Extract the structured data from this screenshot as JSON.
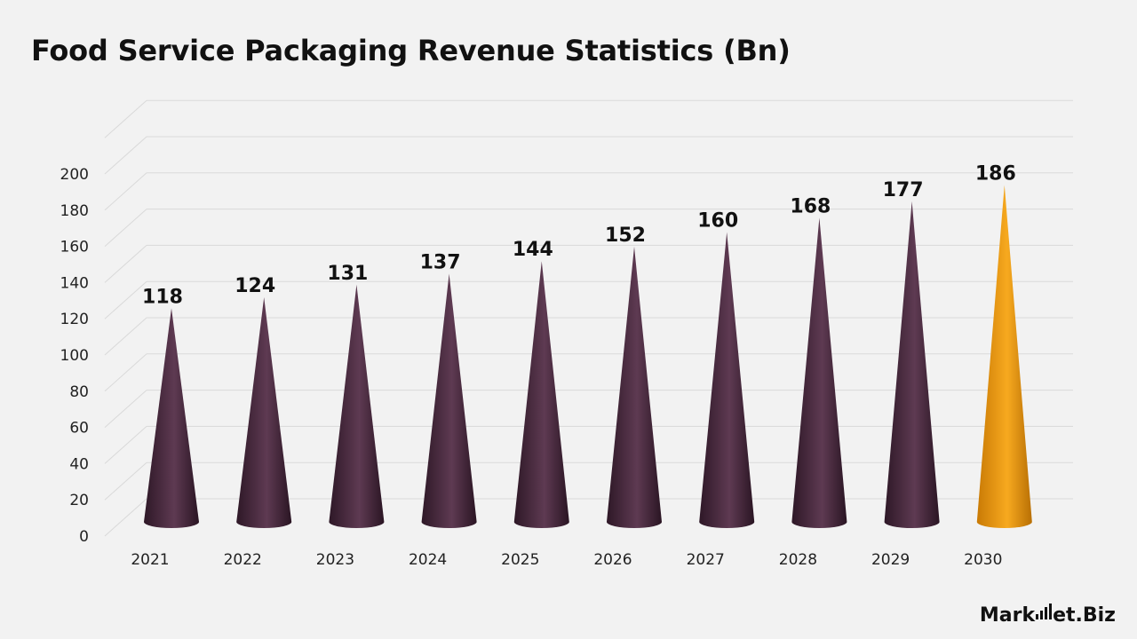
{
  "header": {
    "title": "Food Service Packaging Revenue Statistics (Bn)"
  },
  "brand": {
    "text_left": "Mark",
    "text_right": "et.Biz"
  },
  "colors": {
    "bar": "#4a2c40",
    "highlight": "#f29d12",
    "background": "#f2f2f2",
    "grid": "#d9d9d9"
  },
  "chart_data": {
    "type": "bar",
    "bar_shape": "cone",
    "title": "Food Service Packaging Revenue Statistics (Bn)",
    "categories": [
      "2021",
      "2022",
      "2023",
      "2024",
      "2025",
      "2026",
      "2027",
      "2028",
      "2029",
      "2030"
    ],
    "values": [
      118,
      124,
      131,
      137,
      144,
      152,
      160,
      168,
      177,
      186
    ],
    "data_labels": [
      "118",
      "124",
      "131",
      "137",
      "144",
      "152",
      "160",
      "168",
      "177",
      "186"
    ],
    "highlight_category": "2030",
    "ylim": [
      0,
      200
    ],
    "yticks": [
      0,
      20,
      40,
      60,
      80,
      100,
      120,
      140,
      160,
      180,
      200
    ],
    "grid": true,
    "legend": "none"
  }
}
